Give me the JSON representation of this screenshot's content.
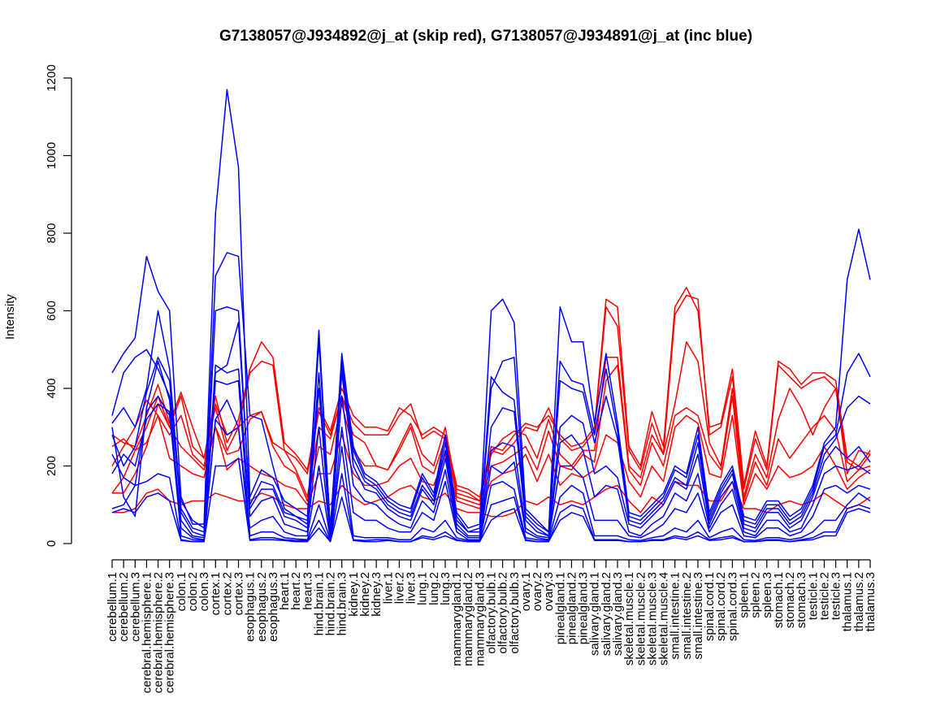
{
  "chart_data": {
    "type": "line",
    "title": "G7138057@J934892@j_at (skip red), G7138057@J934891@j_at (inc blue)",
    "xlabel": "",
    "ylabel": "Intensity",
    "ylim": [
      0,
      1200
    ],
    "yticks": [
      0,
      200,
      400,
      600,
      800,
      1000,
      1200
    ],
    "grid": false,
    "legend": "none",
    "colors": {
      "skip": "#ff0000",
      "inc": "#0000ff",
      "axis": "#000000"
    },
    "categories": [
      "cerebellum.1",
      "cerebellum.2",
      "cerebellum.3",
      "cerebral.hemisphere.1",
      "cerebral.hemisphere.2",
      "cerebral.hemisphere.3",
      "colon.1",
      "colon.2",
      "colon.3",
      "cortex.1",
      "cortex.2",
      "cortex.3",
      "esophagus.1",
      "esophagus.2",
      "esophagus.3",
      "heart.1",
      "heart.2",
      "heart.3",
      "hind.brain.1",
      "hind.brain.2",
      "hind.brain.3",
      "kidney.1",
      "kidney.2",
      "kidney.3",
      "liver.1",
      "liver.2",
      "liver.3",
      "lung.1",
      "lung.2",
      "lung.3",
      "mammarygland.1",
      "mammarygland.2",
      "mammarygland.3",
      "olfactory.bulb.1",
      "olfactory.bulb.2",
      "olfactory.bulb.3",
      "ovary.1",
      "ovary.2",
      "ovary.3",
      "pinealgland.1",
      "pinealgland.2",
      "pinealgland.3",
      "salivary.gland.1",
      "salivary.gland.2",
      "salivary.gland.3",
      "skeletal.muscle.1",
      "skeletal.muscle.2",
      "skeletal.muscle.3",
      "skeletal.muscle.4",
      "small.intestine.1",
      "small.intestine.2",
      "small.intestine.3",
      "spinal.cord.1",
      "spinal.cord.2",
      "spinal.cord.3",
      "spleen.1",
      "spleen.2",
      "spleen.3",
      "stomach.1",
      "stomach.2",
      "stomach.3",
      "testicle.1",
      "testicle.2",
      "testicle.3",
      "thalamus.1",
      "thalamus.2",
      "thalamus.3"
    ],
    "series": [
      {
        "group": "skip",
        "values": [
          280,
          260,
          250,
          330,
          410,
          310,
          390,
          300,
          220,
          380,
          260,
          320,
          450,
          520,
          480,
          260,
          230,
          190,
          350,
          290,
          400,
          330,
          300,
          300,
          290,
          350,
          330,
          280,
          300,
          280,
          150,
          140,
          120,
          250,
          240,
          280,
          310,
          300,
          330,
          280,
          250,
          260,
          300,
          630,
          610,
          250,
          200,
          340,
          250,
          610,
          660,
          600,
          300,
          310,
          450,
          150,
          290,
          200,
          470,
          450,
          410,
          440,
          440,
          420,
          220,
          200,
          240
        ]
      },
      {
        "group": "skip",
        "values": [
          250,
          270,
          240,
          300,
          380,
          300,
          380,
          250,
          220,
          350,
          240,
          300,
          440,
          470,
          460,
          240,
          220,
          180,
          340,
          280,
          380,
          310,
          280,
          280,
          280,
          330,
          360,
          270,
          290,
          270,
          140,
          130,
          110,
          240,
          230,
          260,
          300,
          290,
          350,
          270,
          240,
          250,
          290,
          610,
          560,
          240,
          190,
          310,
          230,
          590,
          640,
          630,
          280,
          300,
          430,
          140,
          270,
          190,
          460,
          430,
          400,
          420,
          430,
          400,
          210,
          190,
          230
        ]
      },
      {
        "group": "skip",
        "values": [
          200,
          250,
          300,
          370,
          330,
          280,
          330,
          230,
          200,
          360,
          280,
          300,
          330,
          340,
          260,
          240,
          190,
          120,
          300,
          270,
          380,
          280,
          260,
          200,
          190,
          250,
          310,
          230,
          200,
          300,
          130,
          120,
          110,
          230,
          270,
          290,
          280,
          220,
          320,
          230,
          200,
          240,
          240,
          480,
          480,
          200,
          170,
          280,
          230,
          360,
          520,
          470,
          260,
          200,
          400,
          120,
          230,
          170,
          320,
          400,
          350,
          280,
          350,
          400,
          180,
          240,
          230
        ]
      },
      {
        "group": "skip",
        "values": [
          130,
          130,
          180,
          250,
          360,
          300,
          250,
          220,
          190,
          300,
          230,
          240,
          320,
          340,
          250,
          200,
          180,
          110,
          250,
          230,
          360,
          240,
          200,
          200,
          190,
          240,
          300,
          200,
          180,
          270,
          120,
          110,
          100,
          200,
          210,
          230,
          250,
          190,
          290,
          200,
          190,
          230,
          210,
          420,
          460,
          190,
          150,
          260,
          200,
          330,
          350,
          330,
          230,
          190,
          380,
          110,
          210,
          150,
          270,
          220,
          260,
          300,
          330,
          290,
          160,
          190,
          200
        ]
      },
      {
        "group": "skip",
        "values": [
          130,
          170,
          240,
          260,
          330,
          220,
          200,
          180,
          170,
          300,
          190,
          220,
          200,
          180,
          170,
          150,
          140,
          100,
          180,
          180,
          280,
          180,
          150,
          150,
          160,
          200,
          220,
          160,
          150,
          230,
          110,
          100,
          90,
          160,
          180,
          190,
          230,
          160,
          230,
          150,
          180,
          170,
          190,
          280,
          260,
          160,
          120,
          200,
          160,
          300,
          330,
          310,
          180,
          170,
          330,
          100,
          180,
          140,
          200,
          170,
          180,
          200,
          250,
          200,
          140,
          170,
          190
        ]
      },
      {
        "group": "skip",
        "values": [
          80,
          80,
          90,
          130,
          140,
          110,
          100,
          110,
          110,
          130,
          120,
          110,
          110,
          130,
          120,
          100,
          90,
          90,
          110,
          100,
          150,
          120,
          100,
          110,
          120,
          140,
          150,
          120,
          110,
          130,
          90,
          80,
          80,
          70,
          70,
          80,
          110,
          100,
          120,
          100,
          110,
          100,
          120,
          140,
          150,
          110,
          80,
          120,
          100,
          160,
          150,
          150,
          110,
          110,
          160,
          90,
          90,
          80,
          100,
          110,
          100,
          110,
          130,
          110,
          90,
          100,
          120
        ]
      },
      {
        "group": "inc",
        "values": [
          440,
          490,
          530,
          740,
          650,
          600,
          120,
          50,
          50,
          850,
          1170,
          970,
          120,
          190,
          170,
          110,
          90,
          70,
          550,
          30,
          490,
          250,
          180,
          160,
          120,
          100,
          90,
          180,
          130,
          280,
          80,
          40,
          50,
          600,
          630,
          570,
          90,
          60,
          30,
          610,
          520,
          520,
          310,
          490,
          310,
          80,
          70,
          100,
          130,
          200,
          180,
          300,
          80,
          150,
          200,
          70,
          60,
          110,
          110,
          70,
          90,
          150,
          260,
          300,
          680,
          810,
          680
        ]
      },
      {
        "group": "inc",
        "values": [
          330,
          440,
          480,
          500,
          450,
          380,
          110,
          60,
          40,
          690,
          750,
          740,
          330,
          320,
          200,
          90,
          70,
          60,
          520,
          40,
          480,
          240,
          170,
          150,
          110,
          90,
          80,
          170,
          120,
          260,
          70,
          30,
          40,
          430,
          390,
          370,
          80,
          50,
          30,
          470,
          420,
          410,
          280,
          450,
          290,
          70,
          60,
          90,
          120,
          190,
          170,
          280,
          70,
          140,
          190,
          60,
          50,
          100,
          100,
          60,
          80,
          140,
          250,
          280,
          440,
          490,
          430
        ]
      },
      {
        "group": "inc",
        "values": [
          310,
          350,
          300,
          400,
          600,
          450,
          90,
          40,
          30,
          440,
          460,
          570,
          100,
          160,
          150,
          80,
          70,
          50,
          440,
          30,
          460,
          220,
          160,
          140,
          100,
          80,
          70,
          150,
          110,
          240,
          60,
          30,
          30,
          400,
          470,
          480,
          70,
          40,
          20,
          420,
          400,
          390,
          260,
          380,
          270,
          60,
          50,
          80,
          110,
          170,
          150,
          260,
          60,
          130,
          180,
          50,
          40,
          90,
          90,
          50,
          70,
          130,
          230,
          270,
          350,
          380,
          360
        ]
      },
      {
        "group": "inc",
        "values": [
          280,
          200,
          250,
          390,
          480,
          420,
          80,
          30,
          20,
          600,
          610,
          600,
          90,
          140,
          140,
          70,
          60,
          40,
          400,
          20,
          440,
          200,
          140,
          130,
          90,
          70,
          60,
          140,
          100,
          220,
          50,
          20,
          20,
          300,
          350,
          340,
          60,
          30,
          20,
          300,
          330,
          310,
          180,
          200,
          170,
          50,
          40,
          70,
          100,
          160,
          140,
          230,
          50,
          120,
          160,
          40,
          30,
          80,
          80,
          40,
          60,
          120,
          210,
          250,
          220,
          250,
          210
        ]
      },
      {
        "group": "inc",
        "values": [
          230,
          170,
          150,
          340,
          380,
          330,
          60,
          20,
          15,
          460,
          440,
          450,
          70,
          110,
          120,
          50,
          40,
          30,
          300,
          15,
          380,
          150,
          110,
          100,
          70,
          50,
          40,
          110,
          80,
          190,
          40,
          15,
          15,
          240,
          260,
          250,
          40,
          20,
          15,
          260,
          280,
          240,
          120,
          150,
          140,
          30,
          20,
          50,
          70,
          130,
          110,
          180,
          40,
          100,
          140,
          30,
          20,
          60,
          60,
          30,
          40,
          100,
          180,
          200,
          190,
          200,
          180
        ]
      },
      {
        "group": "inc",
        "values": [
          300,
          120,
          70,
          350,
          470,
          370,
          40,
          15,
          10,
          320,
          370,
          300,
          40,
          60,
          70,
          30,
          20,
          20,
          200,
          10,
          300,
          80,
          60,
          60,
          40,
          30,
          30,
          80,
          60,
          160,
          30,
          10,
          10,
          200,
          180,
          210,
          30,
          15,
          10,
          200,
          200,
          170,
          60,
          60,
          60,
          20,
          15,
          30,
          50,
          90,
          80,
          130,
          30,
          80,
          100,
          20,
          15,
          40,
          40,
          20,
          30,
          70,
          140,
          150,
          130,
          150,
          140
        ]
      },
      {
        "group": "inc",
        "values": [
          180,
          230,
          200,
          320,
          360,
          340,
          20,
          10,
          8,
          420,
          410,
          420,
          20,
          30,
          30,
          15,
          12,
          10,
          100,
          8,
          250,
          20,
          15,
          15,
          15,
          10,
          10,
          40,
          30,
          60,
          15,
          8,
          8,
          150,
          160,
          140,
          15,
          10,
          8,
          120,
          150,
          130,
          20,
          20,
          20,
          10,
          8,
          15,
          20,
          40,
          30,
          60,
          15,
          30,
          40,
          10,
          8,
          15,
          15,
          10,
          15,
          30,
          60,
          60,
          100,
          130,
          110
        ]
      },
      {
        "group": "inc",
        "values": [
          90,
          100,
          150,
          160,
          180,
          170,
          10,
          5,
          5,
          320,
          280,
          300,
          10,
          15,
          15,
          10,
          8,
          8,
          60,
          5,
          180,
          10,
          8,
          10,
          10,
          5,
          5,
          20,
          15,
          30,
          10,
          5,
          5,
          100,
          110,
          120,
          10,
          5,
          5,
          80,
          100,
          90,
          10,
          10,
          10,
          5,
          5,
          10,
          10,
          20,
          15,
          30,
          10,
          15,
          20,
          5,
          5,
          10,
          10,
          5,
          10,
          15,
          30,
          30,
          90,
          100,
          90
        ]
      },
      {
        "group": "inc",
        "values": [
          80,
          90,
          80,
          120,
          130,
          110,
          8,
          5,
          5,
          200,
          200,
          220,
          8,
          10,
          10,
          8,
          5,
          5,
          40,
          5,
          120,
          8,
          5,
          5,
          8,
          5,
          5,
          15,
          10,
          20,
          8,
          5,
          5,
          60,
          80,
          90,
          8,
          5,
          5,
          60,
          80,
          70,
          8,
          8,
          8,
          5,
          5,
          8,
          8,
          15,
          10,
          20,
          8,
          10,
          15,
          5,
          5,
          8,
          8,
          5,
          8,
          10,
          20,
          20,
          80,
          90,
          80
        ]
      }
    ]
  }
}
